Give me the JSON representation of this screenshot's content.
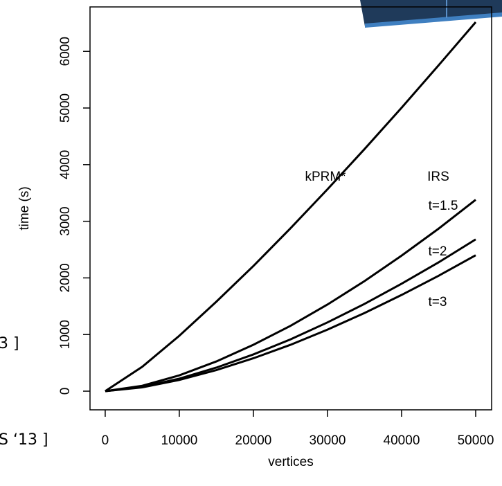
{
  "chart_data": {
    "type": "line",
    "x_label": "vertices",
    "y_label": "time (s)",
    "x": [
      0,
      5000,
      10000,
      15000,
      20000,
      25000,
      30000,
      35000,
      40000,
      45000,
      50000
    ],
    "series": [
      {
        "name": "kPRM*",
        "color": "#000000",
        "values": [
          0,
          431,
          978,
          1580,
          2210,
          2875,
          3565,
          4275,
          5005,
          5755,
          6516
        ]
      },
      {
        "name": "t=1.5",
        "color": "#000000",
        "values": [
          0,
          95,
          279,
          525,
          819,
          1153,
          1530,
          1944,
          2393,
          2870,
          3380
        ]
      },
      {
        "name": "t=2",
        "color": "#000000",
        "values": [
          0,
          75,
          221,
          416,
          649,
          914,
          1214,
          1541,
          1897,
          2275,
          2680
        ]
      },
      {
        "name": "t=3",
        "color": "#000000",
        "values": [
          0,
          67,
          198,
          372,
          581,
          818,
          1087,
          1380,
          1699,
          2038,
          2400
        ]
      }
    ],
    "annotations": [
      "IRS"
    ],
    "xlim": [
      -2050,
      52150
    ],
    "ylim": [
      -330,
      6785
    ],
    "xticks": [
      0,
      10000,
      20000,
      30000,
      40000,
      50000
    ],
    "yticks": [
      0,
      1000,
      2000,
      3000,
      4000,
      5000,
      6000
    ],
    "grid": false
  },
  "slide_fragments": [
    "3 ]",
    "S ‘13 ]"
  ]
}
